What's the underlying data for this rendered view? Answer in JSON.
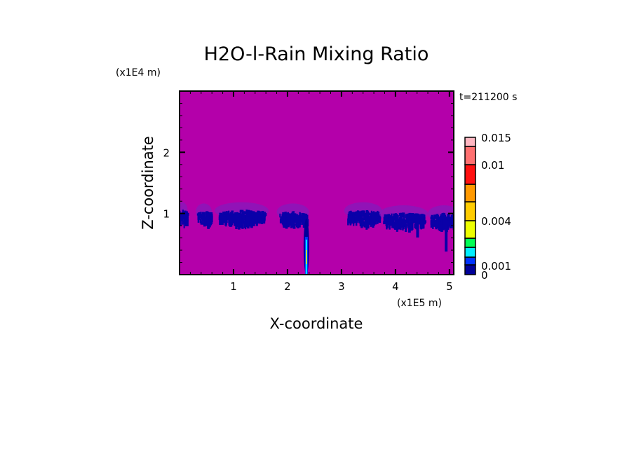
{
  "chart_data": {
    "type": "heatmap",
    "title": "H2O-l-Rain Mixing Ratio",
    "xlabel": "X-coordinate",
    "ylabel": "Z-coordinate",
    "x_unit": "(x1E5 m)",
    "y_unit": "(x1E4 m)",
    "time_label": "t=211200 s",
    "xlim": [
      0,
      5.08
    ],
    "ylim": [
      0,
      3.0
    ],
    "x_ticks": [
      1,
      2,
      3,
      4,
      5
    ],
    "y_ticks": [
      1,
      2
    ],
    "background_color": "#b400aa",
    "colorbar": {
      "levels": [
        0,
        0.0005,
        0.001,
        0.002,
        0.003,
        0.004,
        0.006,
        0.008,
        0.01,
        0.012,
        0.015
      ],
      "colors": [
        "#000099",
        "#0033ff",
        "#00eeff",
        "#00ff55",
        "#eeff00",
        "#ffcc00",
        "#ff9900",
        "#ff1010",
        "#ff7070",
        "#ffb6c1"
      ],
      "tick_labels": [
        {
          "value": 0.015,
          "label": "0.015"
        },
        {
          "value": 0.01,
          "label": "0.01"
        },
        {
          "value": 0.004,
          "label": "0.004"
        },
        {
          "value": 0.001,
          "label": "0.001"
        },
        {
          "value": 0,
          "label": "0"
        }
      ]
    },
    "features": [
      {
        "name": "cloud-band",
        "x_center": 0.05,
        "z_center": 1.0
      },
      {
        "name": "cloud-band",
        "x_center": 0.45,
        "z_center": 0.98
      },
      {
        "name": "cloud-band",
        "x_center": 1.15,
        "z_center": 1.0
      },
      {
        "name": "cloud-band",
        "x_center": 2.1,
        "z_center": 0.98
      },
      {
        "name": "rain-column",
        "x_center": 2.35,
        "z_center": 0.4,
        "max_value": 0.004
      },
      {
        "name": "cloud-band",
        "x_center": 3.4,
        "z_center": 1.0
      },
      {
        "name": "cloud-band",
        "x_center": 4.15,
        "z_center": 0.95
      },
      {
        "name": "cloud-band",
        "x_center": 4.9,
        "z_center": 0.95
      }
    ]
  }
}
